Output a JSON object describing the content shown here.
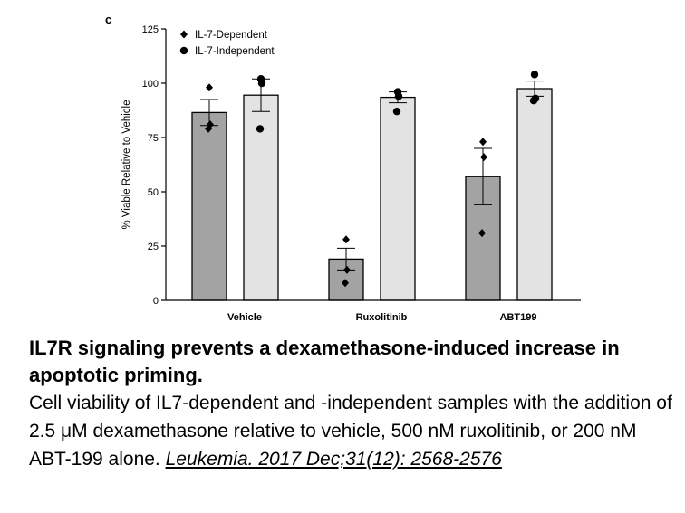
{
  "panel_label": "c",
  "chart_data": {
    "type": "bar",
    "title": "",
    "xlabel": "",
    "ylabel": "% Viable Relative to Vehicle",
    "ylim": [
      0,
      125
    ],
    "yticks": [
      "0",
      "25",
      "50",
      "75",
      "100",
      "125"
    ],
    "categories": [
      "Vehicle",
      "Ruxolitinib",
      "ABT199"
    ],
    "legend_position": "top-left",
    "series": [
      {
        "name": "IL-7-Dependent",
        "marker": "diamond",
        "color": "#a3a3a3",
        "values": [
          86.5,
          19,
          57
        ],
        "error": [
          6,
          5,
          13
        ],
        "points": [
          [
            98,
            81,
            79
          ],
          [
            28,
            14,
            8
          ],
          [
            73,
            66,
            31
          ]
        ]
      },
      {
        "name": "IL-7-Independent",
        "marker": "circle",
        "color": "#e3e3e3",
        "values": [
          94.5,
          93.5,
          97.5
        ],
        "error": [
          7.5,
          2.5,
          3.5
        ],
        "points": [
          [
            102,
            100,
            79
          ],
          [
            96,
            94,
            87
          ],
          [
            104,
            93,
            92
          ]
        ]
      }
    ]
  },
  "caption": {
    "title": "IL7R signaling prevents a dexamethasone-induced increase in apoptotic priming.",
    "body": "Cell viability of IL7-dependent and -independent samples with the addition of 2.5 μM dexamethasone relative to vehicle, 500 nM ruxolitinib, or 200 nM ABT-199 alone.",
    "citation": "Leukemia. 2017 Dec;31(12): 2568-2576"
  }
}
